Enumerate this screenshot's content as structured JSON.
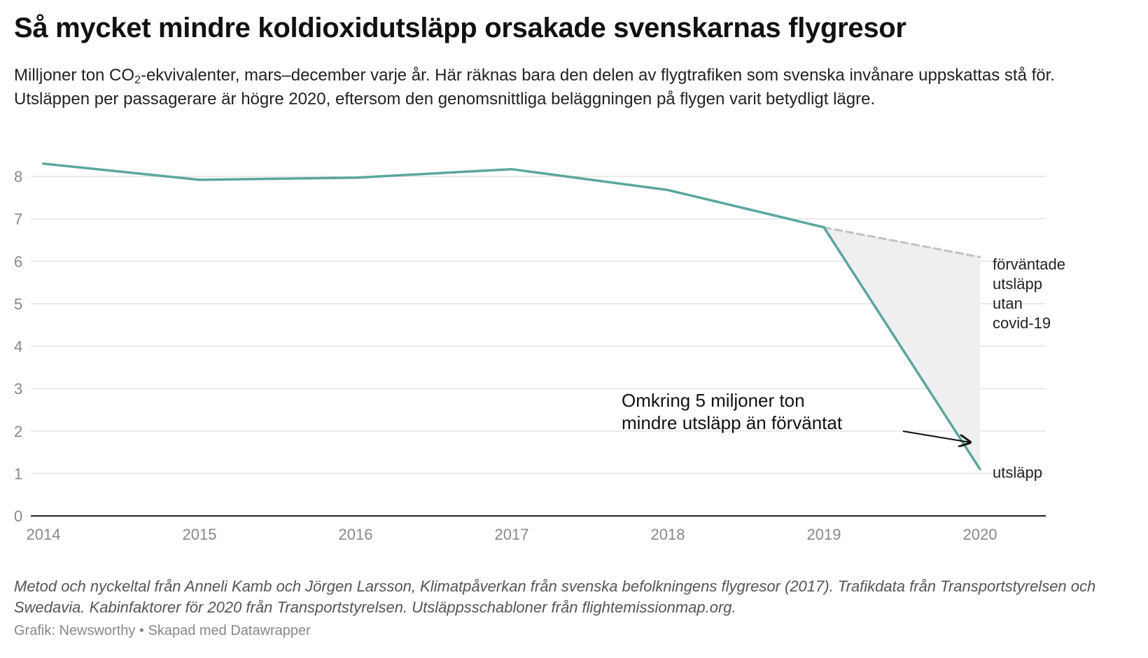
{
  "header": {
    "title": "Så mycket mindre koldioxidutsläpp orsakade svenskarnas flygresor",
    "subtitle_pre": "Milljoner ton CO",
    "subtitle_sub": "2",
    "subtitle_post": "-ekvivalenter, mars–december varje år.  Här räknas bara den delen av flygtrafiken som svenska invånare uppskattas stå för. Utsläppen per passagerare är högre 2020, eftersom den genomsnittliga beläggningen på flygen varit betydligt lägre."
  },
  "chart_data": {
    "type": "line",
    "x": [
      2014,
      2015,
      2016,
      2017,
      2018,
      2019,
      2020
    ],
    "xticks": [
      "2014",
      "2015",
      "2016",
      "2017",
      "2018",
      "2019",
      "2020"
    ],
    "ylim": [
      0,
      8.5
    ],
    "yticks": [
      0,
      1,
      2,
      3,
      4,
      5,
      6,
      7,
      8
    ],
    "grid": true,
    "series": [
      {
        "name": "utsläpp",
        "color": "#5ba69e",
        "x": [
          2014,
          2015,
          2016,
          2017,
          2018,
          2019,
          2020
        ],
        "values": [
          8.3,
          7.92,
          7.97,
          8.17,
          7.68,
          6.8,
          1.1
        ]
      },
      {
        "name": "förväntade utsläpp utan covid-19",
        "color": "#c2c2c2",
        "style": "dashed",
        "x": [
          2019,
          2020
        ],
        "values": [
          6.8,
          6.1
        ]
      }
    ],
    "fill_between": {
      "x": [
        2019,
        2020
      ],
      "upper": [
        6.8,
        6.1
      ],
      "lower": [
        6.8,
        1.1
      ],
      "color": "#efefef"
    },
    "annotations": {
      "expected_label": [
        "förväntade",
        "utsläpp",
        "utan",
        "covid-19"
      ],
      "actual_label": "utsläpp",
      "difference_label": [
        "Omkring 5 miljoner ton",
        "mindre utsläpp än förväntat"
      ]
    }
  },
  "footer": {
    "notes": "Metod och nyckeltal från Anneli Kamb och Jörgen Larsson, Klimatpåverkan från svenska befolkningens flygresor (2017). Trafikdata från Transportstyrelsen och Swedavia. Kabinfaktorer för 2020 från Transportstyrelsen. Utsläppsschabloner från flightemissionmap.org.",
    "credit": "Grafik: Newsworthy • Skapad med Datawrapper"
  }
}
